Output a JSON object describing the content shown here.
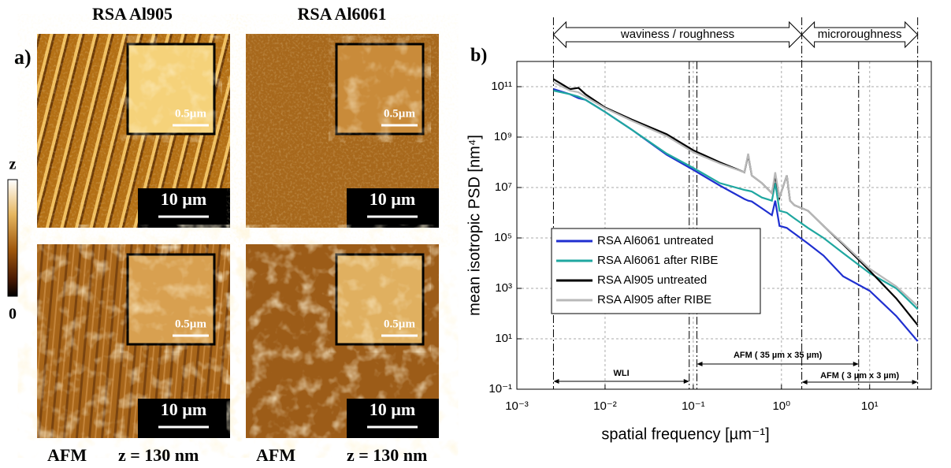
{
  "panel_a": {
    "label": "a)",
    "columns": [
      "RSA Al905",
      "RSA Al6061"
    ],
    "scale_bar": "10 µm",
    "inset_scale_bar": "0.5µm",
    "colorbar_top": "z",
    "colorbar_bottom": "0",
    "footer": [
      "AFM",
      "z = 130 nm",
      "AFM",
      "z = 130 nm"
    ]
  },
  "chart_data": {
    "type": "line",
    "panel_label": "b)",
    "x_label": "spatial frequency [µm⁻¹]",
    "y_label": "mean isotropic PSD [nm⁴]",
    "log_x": true,
    "log_y": true,
    "grid": true,
    "legend": "center left",
    "xlim": [
      0.001,
      50
    ],
    "xticks": [
      {
        "value": 0.001,
        "label": "10⁻³"
      },
      {
        "value": 0.01,
        "label": "10⁻²"
      },
      {
        "value": 0.1,
        "label": "10⁻¹"
      },
      {
        "value": 1,
        "label": "10⁰"
      },
      {
        "value": 10,
        "label": "10¹"
      }
    ],
    "ylim": [
      0.1,
      1000000000000.0
    ],
    "yticks": [
      {
        "value": 0.1,
        "label": "10⁻¹"
      },
      {
        "value": 10,
        "label": "10¹"
      },
      {
        "value": 1000,
        "label": "10³"
      },
      {
        "value": 100000,
        "label": "10⁵"
      },
      {
        "value": 10000000,
        "label": "10⁷"
      },
      {
        "value": 1000000000,
        "label": "10⁹"
      },
      {
        "value": 100000000000,
        "label": "10¹¹"
      }
    ],
    "boundaries": [
      0.0026,
      0.09,
      0.11,
      1.7,
      7.5,
      35
    ],
    "regions": [
      "waviness / roughness",
      "microroughness"
    ],
    "ranges": [
      "WLI",
      "AFM ( 35 µm x 35 µm)",
      "AFM ( 3 µm x 3 µm)"
    ],
    "x": [
      0.0026,
      0.004,
      0.005,
      0.006,
      0.01,
      0.02,
      0.05,
      0.1,
      0.2,
      0.38,
      0.42,
      0.46,
      0.6,
      0.78,
      0.85,
      0.95,
      1.15,
      1.25,
      1.4,
      2,
      3,
      5,
      10,
      20,
      35
    ],
    "series": [
      {
        "name": "RSA Al6061 untreated",
        "color": "#1f2fd0",
        "values": [
          80000000000.0,
          50000000000.0,
          35000000000.0,
          30000000000.0,
          10000000000.0,
          2000000000.0,
          200000000.0,
          50000000.0,
          12000000.0,
          3500000.0,
          3000000.0,
          2800000.0,
          1500000.0,
          800000.0,
          3000000.0,
          300000.0,
          250000.0,
          200000.0,
          150000.0,
          60000.0,
          20000.0,
          3000.0,
          800,
          80,
          8
        ]
      },
      {
        "name": "RSA Al6061 after RIBE",
        "color": "#1fa7a0",
        "values": [
          70000000000.0,
          50000000000.0,
          40000000000.0,
          30000000000.0,
          10000000000.0,
          2000000000.0,
          220000000.0,
          60000000.0,
          15000000.0,
          8000000.0,
          7500000.0,
          7000000.0,
          4000000.0,
          3000000.0,
          15000000.0,
          1200000.0,
          1000000.0,
          800000.0,
          600000.0,
          250000.0,
          100000.0,
          25000.0,
          4000,
          1000,
          150
        ]
      },
      {
        "name": "RSA Al905 untreated",
        "color": "#000000",
        "values": [
          200000000000.0,
          80000000000.0,
          90000000000.0,
          50000000000.0,
          15000000000.0,
          5000000000.0,
          1300000000.0,
          300000000.0,
          100000000.0,
          40000000.0,
          200000000.0,
          30000000.0,
          15000000.0,
          6000000.0,
          30000000.0,
          4000000.0,
          30000000.0,
          3000000.0,
          2000000.0,
          1200000.0,
          300000.0,
          56000.0,
          5000,
          400,
          35
        ]
      },
      {
        "name": "RSA Al905 after RIBE",
        "color": "#b8b8b8",
        "values": [
          150000000000.0,
          70000000000.0,
          60000000000.0,
          40000000000.0,
          14000000000.0,
          4500000000.0,
          1100000000.0,
          250000000.0,
          90000000.0,
          40000000.0,
          220000000.0,
          30000000.0,
          15000000.0,
          6000000.0,
          40000000.0,
          4000000.0,
          30000000.0,
          3000000.0,
          2000000.0,
          1200000.0,
          300000.0,
          60000.0,
          6000,
          1200,
          200
        ]
      }
    ]
  }
}
